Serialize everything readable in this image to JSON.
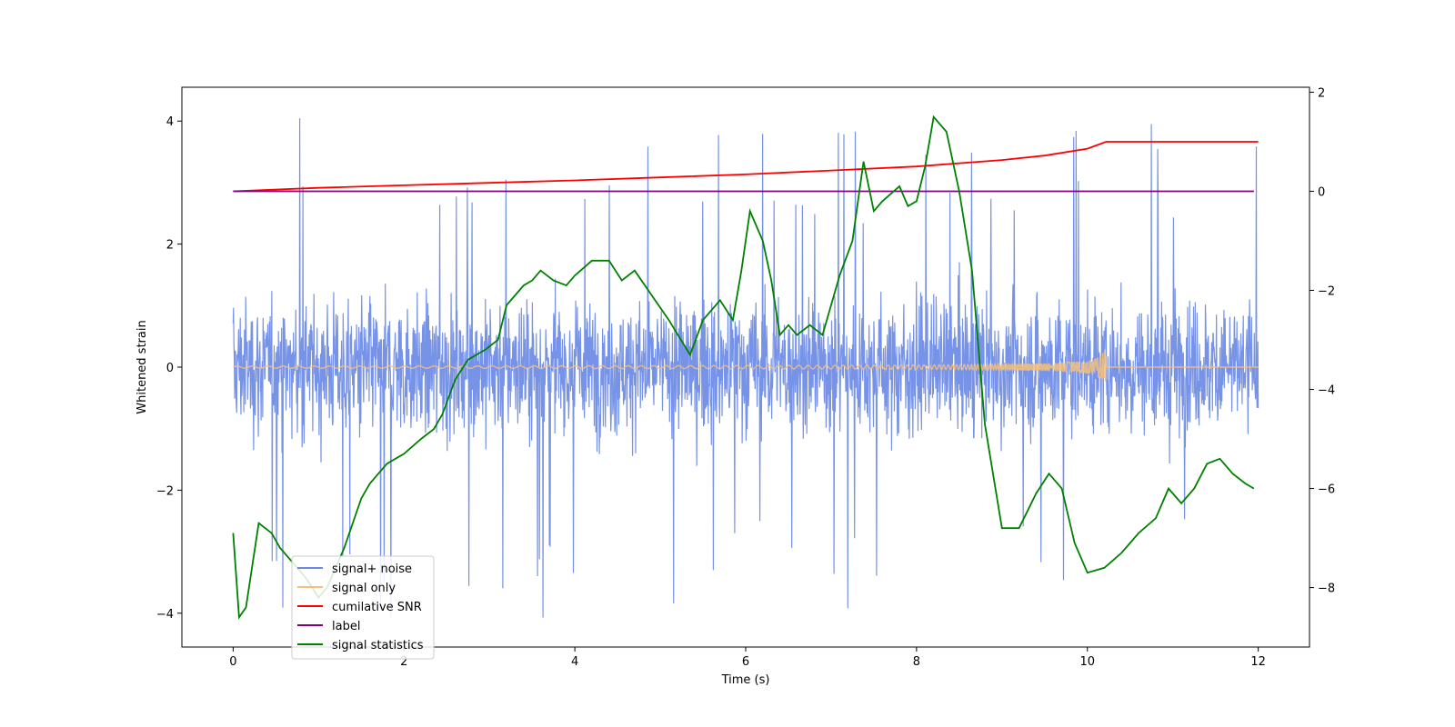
{
  "chart_data": {
    "type": "line",
    "title": "",
    "xlabel": "Time (s)",
    "ylabel": "Whitened strain",
    "xlim": [
      -0.6,
      12.6
    ],
    "ylim": [
      -4.55,
      4.55
    ],
    "y2lim": [
      -9.2,
      2.1
    ],
    "x_ticks": [
      0,
      2,
      4,
      6,
      8,
      10,
      12
    ],
    "x_tick_labels": [
      "0",
      "2",
      "4",
      "6",
      "8",
      "10",
      "12"
    ],
    "y_ticks": [
      -4,
      -2,
      0,
      2,
      4
    ],
    "y_tick_labels": [
      "−4",
      "−2",
      "0",
      "2",
      "4"
    ],
    "y2_ticks": [
      -8,
      -6,
      -4,
      -2,
      0,
      2
    ],
    "y2_tick_labels": [
      "−8",
      "−6",
      "−4",
      "−2",
      "0",
      "2"
    ],
    "grid": false,
    "legend_position": "lower-left",
    "series": [
      {
        "name": "signal+ noise",
        "color": "#6b8ae6",
        "axis": "left",
        "description": "dense whitened noise with signal",
        "x_range": [
          0,
          12
        ],
        "typical_range": [
          -2.3,
          2.3
        ],
        "extremes": [
          -4.1,
          4.15
        ]
      },
      {
        "name": "signal only",
        "color": "#f5c07a",
        "axis": "left",
        "description": "chirp signal growing to merger",
        "x_range": [
          0,
          12
        ],
        "merger_time": 10.22,
        "peak_amplitude": 0.45
      },
      {
        "name": "cumilative SNR",
        "color": "#ff0000",
        "axis": "right",
        "x": [
          0,
          1,
          2,
          3,
          4,
          5,
          6,
          7,
          8,
          9,
          9.5,
          10,
          10.22,
          12
        ],
        "values": [
          0,
          0.07,
          0.12,
          0.17,
          0.22,
          0.28,
          0.34,
          0.42,
          0.5,
          0.63,
          0.72,
          0.86,
          1.0,
          1.0
        ]
      },
      {
        "name": "label",
        "color": "#800080",
        "axis": "right",
        "x": [
          0,
          11.95
        ],
        "values": [
          0,
          0
        ]
      },
      {
        "name": "signal statistics",
        "color": "#008000",
        "axis": "right",
        "x": [
          0,
          0.07,
          0.15,
          0.3,
          0.45,
          0.55,
          0.7,
          0.85,
          1.0,
          1.1,
          1.3,
          1.5,
          1.6,
          1.7,
          1.8,
          1.9,
          2.0,
          2.2,
          2.35,
          2.45,
          2.6,
          2.75,
          2.95,
          3.1,
          3.2,
          3.3,
          3.4,
          3.5,
          3.6,
          3.75,
          3.9,
          4.0,
          4.2,
          4.4,
          4.55,
          4.7,
          4.9,
          5.1,
          5.35,
          5.5,
          5.7,
          5.85,
          5.95,
          6.05,
          6.2,
          6.3,
          6.4,
          6.5,
          6.6,
          6.75,
          6.9,
          7.1,
          7.25,
          7.38,
          7.5,
          7.6,
          7.8,
          7.9,
          8.0,
          8.1,
          8.2,
          8.35,
          8.5,
          8.65,
          8.8,
          9.0,
          9.2,
          9.4,
          9.55,
          9.7,
          9.85,
          10.0,
          10.2,
          10.4,
          10.6,
          10.8,
          10.95,
          11.1,
          11.25,
          11.4,
          11.55,
          11.7,
          11.85,
          11.95
        ],
        "values": [
          -6.9,
          -8.6,
          -8.4,
          -6.7,
          -6.9,
          -7.2,
          -7.5,
          -7.8,
          -8.2,
          -8.0,
          -7.2,
          -6.2,
          -5.9,
          -5.7,
          -5.5,
          -5.4,
          -5.3,
          -5.0,
          -4.8,
          -4.5,
          -3.8,
          -3.4,
          -3.2,
          -3.0,
          -2.3,
          -2.1,
          -1.9,
          -1.8,
          -1.6,
          -1.8,
          -1.9,
          -1.7,
          -1.4,
          -1.4,
          -1.8,
          -1.6,
          -2.1,
          -2.6,
          -3.3,
          -2.6,
          -2.2,
          -2.6,
          -1.6,
          -0.4,
          -1.0,
          -1.8,
          -2.9,
          -2.7,
          -2.9,
          -2.7,
          -2.9,
          -1.7,
          -1.0,
          0.6,
          -0.4,
          -0.2,
          0.1,
          -0.3,
          -0.2,
          0.5,
          1.5,
          1.2,
          0.0,
          -1.6,
          -4.7,
          -6.8,
          -6.8,
          -6.1,
          -5.7,
          -6.0,
          -7.1,
          -7.7,
          -7.6,
          -7.3,
          -6.9,
          -6.6,
          -6.0,
          -6.3,
          -6.0,
          -5.5,
          -5.4,
          -5.7,
          -5.9,
          -6.0
        ]
      }
    ]
  }
}
